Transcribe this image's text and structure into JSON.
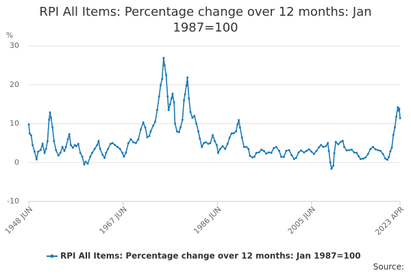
{
  "chart_data": {
    "type": "line",
    "title": "RPI All Items: Percentage change over 12 months: Jan 1987=100",
    "y_axis_label": "%",
    "source_label": "Source:",
    "x": [
      1948.42,
      1948.6,
      1948.9,
      1949.2,
      1949.6,
      1950.0,
      1950.3,
      1950.8,
      1951.2,
      1951.6,
      1951.9,
      1952.2,
      1952.5,
      1952.7,
      1952.9,
      1953.2,
      1953.5,
      1953.9,
      1954.4,
      1954.8,
      1955.2,
      1955.6,
      1955.9,
      1956.3,
      1956.6,
      1956.9,
      1957.3,
      1957.7,
      1958.0,
      1958.4,
      1958.8,
      1959.2,
      1959.6,
      1959.9,
      1960.3,
      1960.8,
      1961.2,
      1961.7,
      1962.2,
      1962.5,
      1962.8,
      1963.3,
      1963.7,
      1964.0,
      1964.4,
      1964.9,
      1965.3,
      1965.8,
      1966.3,
      1966.8,
      1967.3,
      1967.6,
      1968.0,
      1968.5,
      1969.0,
      1969.5,
      1970.0,
      1970.5,
      1971.0,
      1971.5,
      1971.9,
      1972.3,
      1972.7,
      1973.0,
      1973.5,
      1973.9,
      1974.3,
      1974.7,
      1975.0,
      1975.3,
      1975.6,
      1975.8,
      1976.1,
      1976.4,
      1976.6,
      1976.9,
      1977.2,
      1977.4,
      1977.7,
      1977.9,
      1978.3,
      1978.7,
      1979.0,
      1979.4,
      1979.7,
      1979.9,
      1980.2,
      1980.4,
      1980.7,
      1981.0,
      1981.4,
      1981.8,
      1982.2,
      1982.6,
      1982.9,
      1983.3,
      1983.7,
      1984.1,
      1984.6,
      1985.0,
      1985.5,
      1985.9,
      1986.3,
      1986.6,
      1987.0,
      1987.5,
      1988.0,
      1988.5,
      1988.9,
      1989.3,
      1989.7,
      1990.2,
      1990.5,
      1990.75,
      1991.0,
      1991.4,
      1991.8,
      1992.3,
      1992.7,
      1993.0,
      1993.5,
      1993.9,
      1994.3,
      1994.8,
      1995.3,
      1995.8,
      1996.3,
      1996.8,
      1997.3,
      1997.8,
      1998.3,
      1998.9,
      1999.3,
      1999.8,
      2000.3,
      2000.9,
      2001.4,
      2001.9,
      2002.3,
      2002.8,
      2003.3,
      2003.9,
      2004.4,
      2004.9,
      2005.4,
      2005.9,
      2006.4,
      2006.9,
      2007.3,
      2007.8,
      2008.3,
      2008.7,
      2008.9,
      2009.2,
      2009.45,
      2009.8,
      2010.0,
      2010.3,
      2010.8,
      2011.3,
      2011.7,
      2012.0,
      2012.5,
      2013.0,
      2013.5,
      2014.0,
      2014.5,
      2014.9,
      2015.3,
      2015.8,
      2016.3,
      2016.8,
      2017.3,
      2017.8,
      2018.3,
      2018.8,
      2019.3,
      2019.8,
      2020.3,
      2020.7,
      2021.0,
      2021.3,
      2021.6,
      2021.9,
      2022.2,
      2022.5,
      2022.8,
      2022.95,
      2023.1,
      2023.25
    ],
    "series": [
      {
        "name": "RPI All Items: Percentage change over 12 months: Jan 1987=100",
        "color": "#1a78b8",
        "values": [
          9.8,
          7.5,
          7.0,
          4.5,
          2.8,
          0.8,
          2.8,
          3.2,
          4.8,
          2.5,
          3.5,
          5.5,
          11.0,
          12.9,
          11.5,
          9.0,
          5.5,
          3.2,
          1.8,
          2.5,
          4.0,
          3.0,
          4.0,
          6.0,
          7.3,
          4.5,
          3.8,
          4.5,
          4.2,
          4.8,
          2.5,
          1.5,
          -0.5,
          0.2,
          -0.3,
          1.5,
          2.5,
          3.5,
          4.5,
          5.5,
          3.5,
          2.0,
          1.2,
          2.5,
          3.5,
          4.8,
          5.0,
          4.5,
          4.0,
          3.5,
          2.5,
          1.5,
          2.5,
          5.0,
          6.0,
          5.2,
          5.0,
          6.0,
          8.5,
          10.3,
          9.0,
          6.5,
          6.8,
          8.0,
          9.5,
          10.5,
          13.5,
          17.0,
          19.9,
          21.5,
          26.9,
          25.0,
          22.5,
          17.0,
          13.5,
          15.0,
          16.5,
          17.7,
          15.5,
          10.0,
          8.0,
          7.8,
          9.0,
          11.0,
          16.0,
          17.5,
          19.8,
          21.9,
          16.5,
          13.0,
          11.5,
          12.0,
          10.0,
          8.0,
          6.2,
          4.0,
          5.0,
          5.2,
          4.8,
          5.0,
          7.0,
          5.5,
          4.5,
          2.5,
          3.5,
          4.2,
          3.5,
          4.8,
          6.4,
          7.5,
          7.5,
          8.0,
          9.8,
          10.9,
          9.0,
          6.4,
          4.0,
          4.0,
          3.5,
          1.7,
          1.3,
          1.5,
          2.5,
          2.6,
          3.3,
          3.0,
          2.3,
          2.6,
          2.5,
          3.7,
          4.0,
          3.0,
          1.5,
          1.4,
          3.0,
          3.2,
          1.9,
          0.9,
          1.2,
          2.6,
          3.1,
          2.6,
          3.0,
          3.4,
          2.8,
          2.2,
          3.0,
          3.9,
          4.5,
          4.0,
          4.2,
          5.0,
          3.0,
          0.0,
          -1.6,
          -0.8,
          2.4,
          5.3,
          4.7,
          5.3,
          5.6,
          4.0,
          3.1,
          3.2,
          3.3,
          2.6,
          2.5,
          1.6,
          0.9,
          1.0,
          1.3,
          2.2,
          3.5,
          4.0,
          3.4,
          3.2,
          3.0,
          2.2,
          1.0,
          0.7,
          1.4,
          2.9,
          3.8,
          7.1,
          9.0,
          11.8,
          14.2,
          13.4,
          13.8,
          11.4
        ]
      }
    ],
    "xlim": [
      1948.42,
      2023.25
    ],
    "xticks": [
      {
        "value": 1948.42,
        "label": "1948 JUN"
      },
      {
        "value": 1967.42,
        "label": "1967 JUN"
      },
      {
        "value": 1986.42,
        "label": "1986 JUN"
      },
      {
        "value": 2005.42,
        "label": "2005 JUN"
      },
      {
        "value": 2023.25,
        "label": "2023 APR"
      }
    ],
    "ylim": [
      -10,
      30
    ],
    "yticks": [
      -10,
      0,
      10,
      20,
      30
    ],
    "grid": true,
    "legend": "bottom"
  }
}
